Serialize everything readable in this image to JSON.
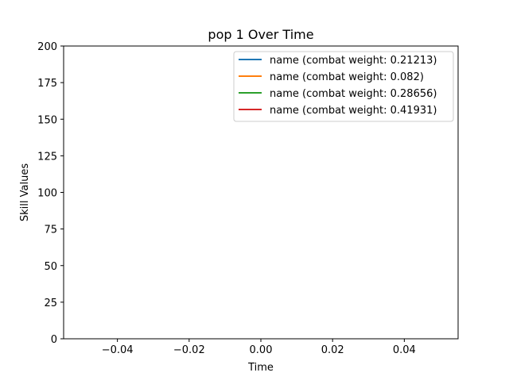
{
  "chart_data": {
    "type": "line",
    "title": "pop 1 Over Time",
    "xlabel": "Time",
    "ylabel": "Skill Values",
    "xlim": [
      -0.055,
      0.055
    ],
    "ylim": [
      0,
      200
    ],
    "x_ticks": [
      -0.04,
      -0.02,
      0.0,
      0.02,
      0.04
    ],
    "x_tick_labels": [
      "−0.04",
      "−0.02",
      "0.00",
      "0.02",
      "0.04"
    ],
    "y_ticks": [
      0,
      25,
      50,
      75,
      100,
      125,
      150,
      175,
      200
    ],
    "y_tick_labels": [
      "0",
      "25",
      "50",
      "75",
      "100",
      "125",
      "150",
      "175",
      "200"
    ],
    "grid": false,
    "legend_position": "top-right",
    "x": [],
    "series": [
      {
        "name": "name (combat weight: 0.21213)",
        "color": "#1f77b4",
        "values": []
      },
      {
        "name": "name (combat weight: 0.082)",
        "color": "#ff7f0e",
        "values": []
      },
      {
        "name": "name (combat weight: 0.28656)",
        "color": "#2ca02c",
        "values": []
      },
      {
        "name": "name (combat weight: 0.41931)",
        "color": "#d62728",
        "values": []
      }
    ]
  }
}
